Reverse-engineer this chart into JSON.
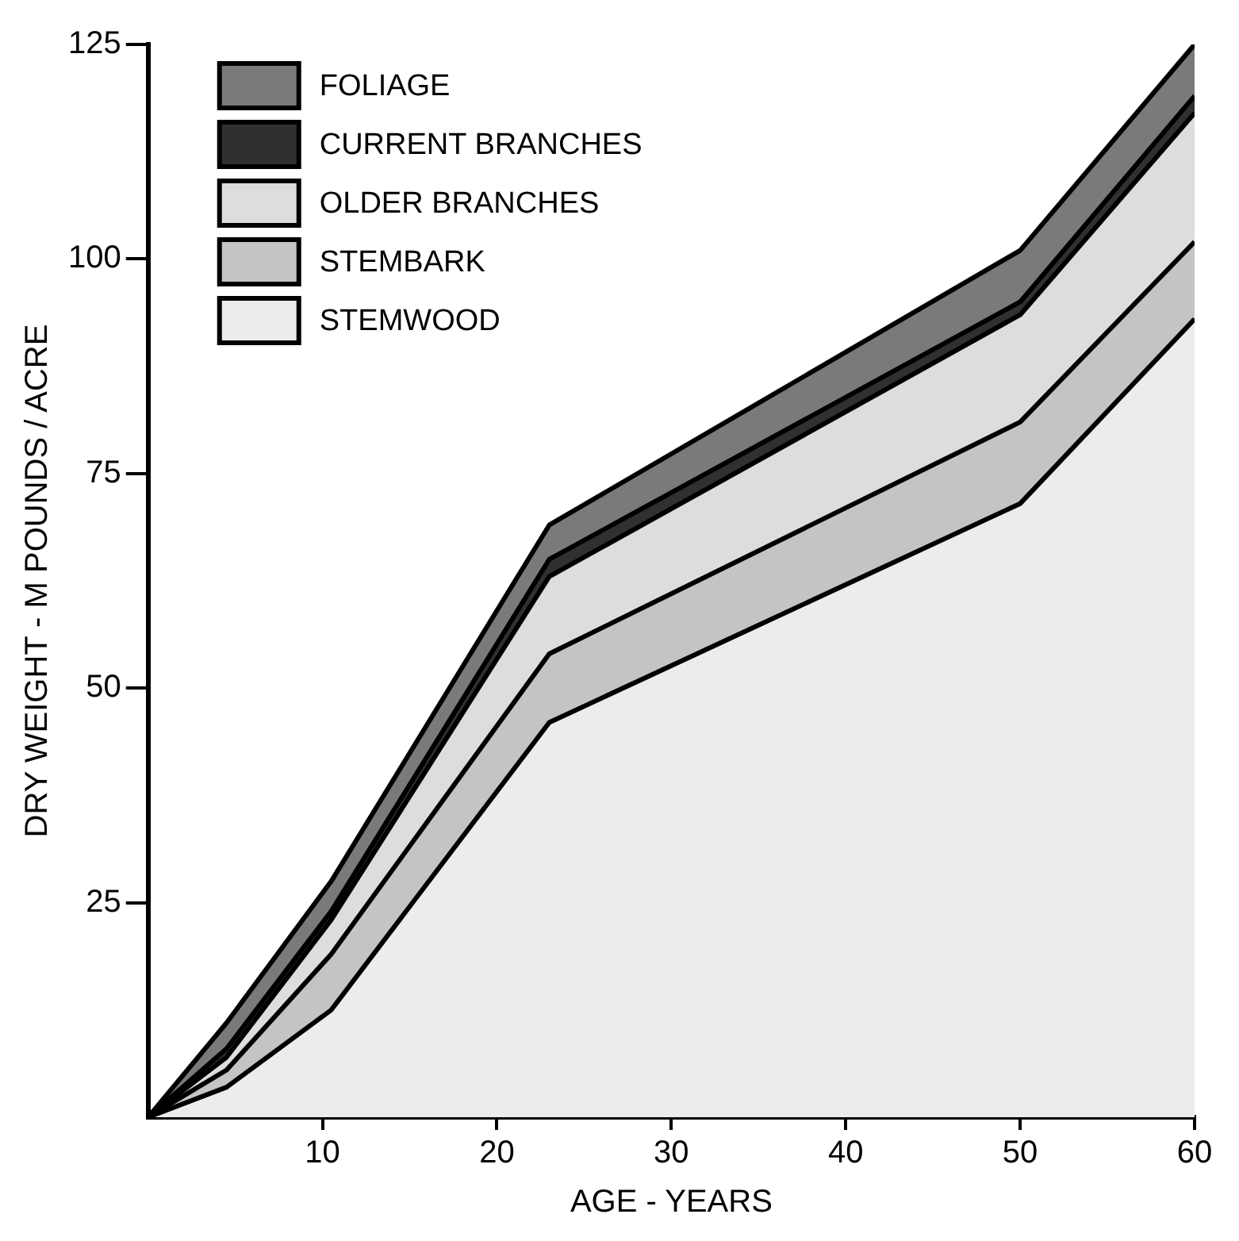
{
  "chart_data": {
    "type": "area",
    "stacked": true,
    "xlabel": "AGE - YEARS",
    "ylabel": "DRY WEIGHT - M POUNDS / ACRE",
    "x": [
      0,
      4.5,
      10.5,
      23,
      50,
      60
    ],
    "xlim": [
      0,
      60
    ],
    "xticks": [
      10,
      20,
      30,
      40,
      50,
      60
    ],
    "ylim": [
      0,
      125
    ],
    "yticks": [
      25,
      50,
      75,
      100,
      125
    ],
    "grid": false,
    "legend": "top left",
    "marker": "none",
    "series": [
      {
        "name": "STEMWOOD",
        "color": "#ececec",
        "values": [
          0,
          3.5,
          12.5,
          46,
          71.5,
          93
        ]
      },
      {
        "name": "STEMBARK",
        "color": "#c4c4c4",
        "values": [
          0,
          2,
          6.5,
          8,
          9.5,
          9
        ]
      },
      {
        "name": "OLDER BRANCHES",
        "color": "#dddddd",
        "values": [
          0,
          1.5,
          4,
          9,
          12.5,
          15
        ]
      },
      {
        "name": "CURRENT BRANCHES",
        "color": "#303030",
        "values": [
          0,
          1,
          1,
          2,
          1.5,
          2
        ]
      },
      {
        "name": "FOLIAGE",
        "color": "#7a7a7a",
        "values": [
          0,
          3,
          3.5,
          4,
          6,
          6
        ]
      }
    ]
  }
}
